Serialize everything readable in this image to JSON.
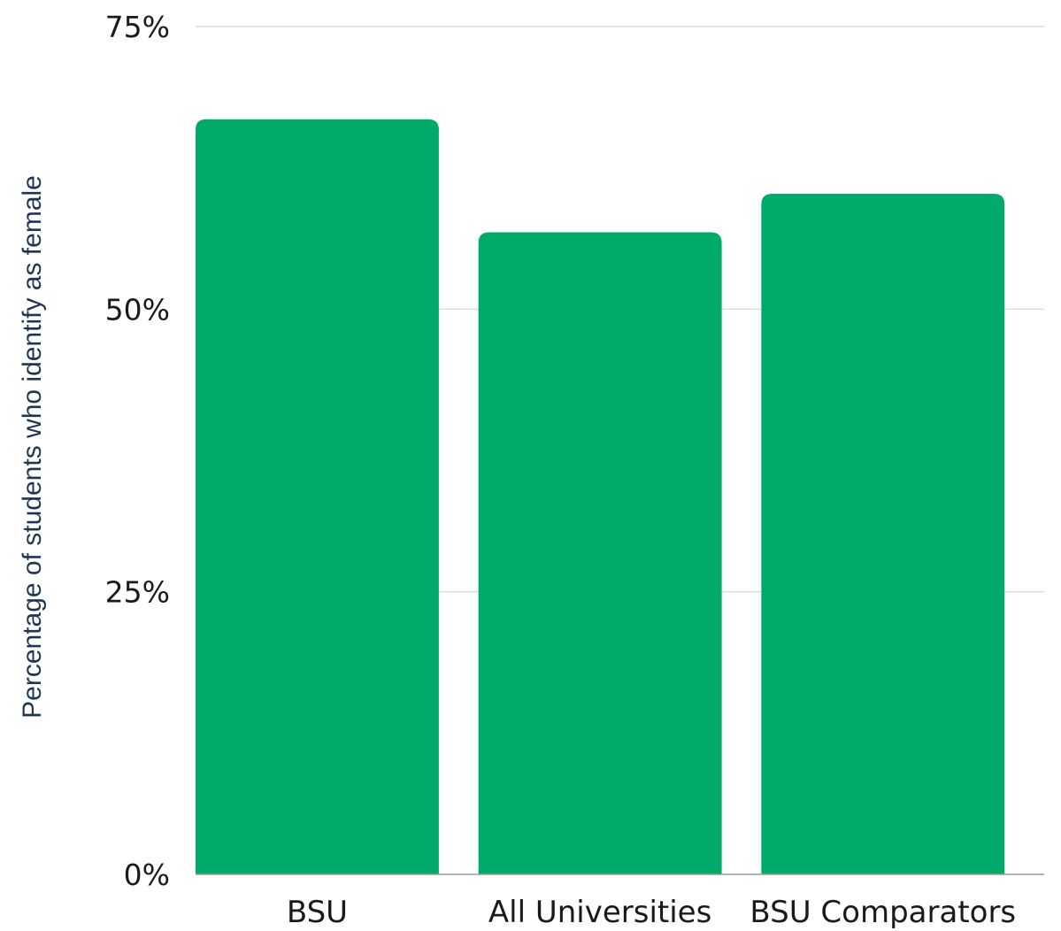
{
  "chart_data": {
    "type": "bar",
    "categories": [
      "BSU",
      "All Universities",
      "BSU Comparators"
    ],
    "values": [
      66.8,
      56.8,
      60.2
    ],
    "ylabel": "Percentage of students who identify as female",
    "xlabel": "",
    "ylim": [
      0,
      75
    ],
    "yticks": [
      0,
      25,
      50,
      75
    ],
    "ytick_labels": [
      "0%",
      "25%",
      "50%",
      "75%"
    ],
    "grid": true,
    "bar_color": "#00ab6a"
  }
}
